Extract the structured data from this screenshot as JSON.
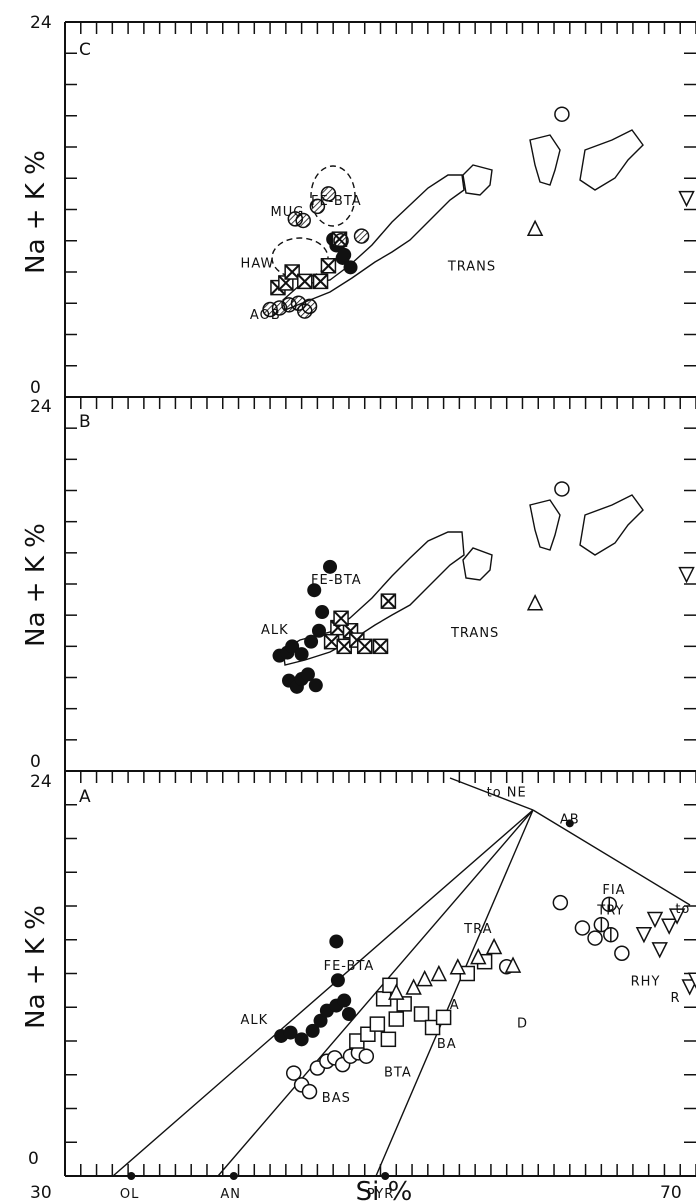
{
  "chart_data": {
    "type": "scatter",
    "x_axis": {
      "label": "Si %",
      "range": [
        30,
        70
      ],
      "tick_labels": [
        "30",
        "70"
      ]
    },
    "panels": [
      {
        "id": "C",
        "label": "C",
        "ylabel": "Na + K %",
        "y_range": [
          0,
          24
        ],
        "y_tick_labels": [
          "0",
          "24"
        ],
        "annotations": [
          {
            "text": "MUG",
            "x": 44.1,
            "y": 11.6
          },
          {
            "text": "FE-BTA",
            "x": 47.2,
            "y": 12.3
          },
          {
            "text": "HAW",
            "x": 42.2,
            "y": 8.3
          },
          {
            "text": "AOB",
            "x": 42.7,
            "y": 5.0
          },
          {
            "text": "TRANS",
            "x": 55.8,
            "y": 8.1
          }
        ],
        "groups": [
          {
            "name": "filled",
            "points": [
              [
                47.2,
                9.7
              ],
              [
                47.6,
                8.9
              ],
              [
                48.1,
                8.3
              ],
              [
                47.0,
                10.1
              ],
              [
                47.7,
                9.1
              ]
            ]
          },
          {
            "name": "square-cross",
            "points": [
              [
                43.5,
                7.0
              ],
              [
                44.0,
                7.3
              ],
              [
                44.4,
                8.0
              ],
              [
                45.2,
                7.4
              ],
              [
                46.2,
                7.4
              ],
              [
                46.7,
                8.4
              ],
              [
                47.4,
                10.1
              ]
            ]
          },
          {
            "name": "circle-hatched",
            "points": [
              [
                43.0,
                5.6
              ],
              [
                43.6,
                5.7
              ],
              [
                44.2,
                5.9
              ],
              [
                44.8,
                6.0
              ],
              [
                45.2,
                5.5
              ],
              [
                45.5,
                5.8
              ],
              [
                44.6,
                11.4
              ],
              [
                45.1,
                11.3
              ],
              [
                46.0,
                12.2
              ],
              [
                46.7,
                13.0
              ],
              [
                47.5,
                10.0
              ],
              [
                48.8,
                10.3
              ]
            ]
          },
          {
            "name": "triangle",
            "points": [
              [
                59.8,
                10.8
              ]
            ]
          },
          {
            "name": "circle",
            "points": [
              [
                61.5,
                18.1
              ]
            ]
          },
          {
            "name": "inverted-triangle",
            "points": [
              [
                69.4,
                12.7
              ]
            ]
          }
        ]
      },
      {
        "id": "B",
        "label": "B",
        "ylabel": "Na + K %",
        "y_range": [
          0,
          24
        ],
        "y_tick_labels": [
          "0",
          "24"
        ],
        "annotations": [
          {
            "text": "FE-BTA",
            "x": 47.2,
            "y": 12.0
          },
          {
            "text": "ALK",
            "x": 43.3,
            "y": 8.8
          },
          {
            "text": "TRANS",
            "x": 56.0,
            "y": 8.6
          }
        ],
        "groups": [
          {
            "name": "filled",
            "points": [
              [
                43.6,
                7.4
              ],
              [
                44.1,
                7.6
              ],
              [
                44.4,
                8.0
              ],
              [
                45.0,
                7.5
              ],
              [
                44.2,
                5.8
              ],
              [
                44.7,
                5.4
              ],
              [
                45.0,
                5.9
              ],
              [
                45.4,
                6.2
              ],
              [
                45.9,
                5.5
              ],
              [
                45.6,
                8.3
              ],
              [
                46.1,
                9.0
              ],
              [
                46.3,
                10.2
              ],
              [
                45.8,
                11.6
              ],
              [
                46.8,
                13.1
              ]
            ]
          },
          {
            "name": "square-cross",
            "points": [
              [
                46.9,
                8.3
              ],
              [
                47.3,
                9.2
              ],
              [
                47.7,
                8.0
              ],
              [
                48.1,
                9.0
              ],
              [
                48.5,
                8.4
              ],
              [
                49.0,
                8.0
              ],
              [
                50.0,
                8.0
              ],
              [
                50.5,
                10.9
              ],
              [
                47.5,
                9.8
              ]
            ]
          },
          {
            "name": "triangle",
            "points": [
              [
                59.8,
                10.8
              ]
            ]
          },
          {
            "name": "circle",
            "points": [
              [
                61.5,
                18.1
              ]
            ]
          },
          {
            "name": "inverted-triangle",
            "points": [
              [
                69.4,
                12.6
              ]
            ]
          }
        ]
      },
      {
        "id": "A",
        "label": "A",
        "ylabel": "Na + K %",
        "y_range": [
          0,
          24
        ],
        "y_tick_labels": [
          "0",
          "24"
        ],
        "annotations": [
          {
            "text": "to NE",
            "x": 58.0,
            "y": 22.5
          },
          {
            "text": "AB",
            "x": 62.0,
            "y": 20.9
          },
          {
            "text": "to QZ",
            "x": 70.0,
            "y": 15.6
          },
          {
            "text": "FIA",
            "x": 64.8,
            "y": 16.7
          },
          {
            "text": "TRY",
            "x": 64.6,
            "y": 15.5
          },
          {
            "text": "TRA",
            "x": 56.2,
            "y": 14.4
          },
          {
            "text": "RHY",
            "x": 66.8,
            "y": 11.3
          },
          {
            "text": "FE-BTA",
            "x": 48.0,
            "y": 12.2
          },
          {
            "text": "ALK",
            "x": 42.0,
            "y": 9.0
          },
          {
            "text": "A",
            "x": 54.7,
            "y": 9.9
          },
          {
            "text": "D",
            "x": 59.0,
            "y": 8.8
          },
          {
            "text": "BA",
            "x": 54.2,
            "y": 7.6
          },
          {
            "text": "BTA",
            "x": 51.1,
            "y": 5.9
          },
          {
            "text": "BAS",
            "x": 47.2,
            "y": 4.4
          },
          {
            "text": "R",
            "x": 68.7,
            "y": 10.3
          },
          {
            "text": "OL",
            "x": 34.1,
            "y": -1.3
          },
          {
            "text": "AN",
            "x": 40.5,
            "y": -1.3
          },
          {
            "text": "PYR",
            "x": 50.0,
            "y": -1.3
          }
        ],
        "reference_points": [
          {
            "name": "AB",
            "x": 62.0,
            "y": 20.9
          },
          {
            "name": "OL",
            "x": 34.2,
            "y": 0.0
          },
          {
            "name": "AN",
            "x": 40.7,
            "y": 0.0
          },
          {
            "name": "PYR",
            "x": 50.3,
            "y": 0.0
          }
        ],
        "groups": [
          {
            "name": "filled",
            "points": [
              [
                43.7,
                8.3
              ],
              [
                44.3,
                8.5
              ],
              [
                45.0,
                8.1
              ],
              [
                45.7,
                8.6
              ],
              [
                46.2,
                9.2
              ],
              [
                46.6,
                9.8
              ],
              [
                47.2,
                10.1
              ],
              [
                47.7,
                10.4
              ],
              [
                48.0,
                9.6
              ],
              [
                47.3,
                11.6
              ],
              [
                47.2,
                13.9
              ]
            ]
          },
          {
            "name": "circle",
            "points": [
              [
                44.5,
                6.1
              ],
              [
                45.0,
                5.4
              ],
              [
                45.5,
                5.0
              ],
              [
                46.0,
                6.4
              ],
              [
                46.6,
                6.8
              ],
              [
                47.1,
                7.0
              ],
              [
                47.6,
                6.6
              ],
              [
                48.1,
                7.1
              ],
              [
                48.6,
                7.3
              ],
              [
                49.1,
                7.1
              ],
              [
                58.0,
                12.4
              ],
              [
                61.4,
                16.2
              ],
              [
                62.8,
                14.7
              ],
              [
                63.6,
                14.1
              ],
              [
                65.3,
                13.2
              ]
            ]
          },
          {
            "name": "square",
            "points": [
              [
                48.5,
                8.0
              ],
              [
                49.2,
                8.4
              ],
              [
                49.8,
                9.0
              ],
              [
                50.5,
                8.1
              ],
              [
                51.0,
                9.3
              ],
              [
                50.2,
                10.5
              ],
              [
                50.6,
                11.3
              ],
              [
                51.5,
                10.2
              ],
              [
                52.6,
                9.6
              ],
              [
                53.3,
                8.8
              ],
              [
                54.0,
                9.4
              ],
              [
                55.5,
                12.0
              ],
              [
                56.6,
                12.7
              ]
            ]
          },
          {
            "name": "triangle",
            "points": [
              [
                51.0,
                10.9
              ],
              [
                52.1,
                11.2
              ],
              [
                52.8,
                11.7
              ],
              [
                53.7,
                12.0
              ],
              [
                54.9,
                12.4
              ],
              [
                56.2,
                13.0
              ],
              [
                57.2,
                13.6
              ],
              [
                58.4,
                12.5
              ]
            ]
          },
          {
            "name": "circle-barred",
            "points": [
              [
                64.5,
                16.1
              ],
              [
                64.0,
                14.9
              ],
              [
                64.6,
                14.3
              ]
            ]
          },
          {
            "name": "inverted-triangle",
            "points": [
              [
                66.7,
                14.3
              ],
              [
                67.4,
                15.2
              ],
              [
                68.3,
                14.8
              ],
              [
                68.8,
                15.4
              ],
              [
                67.7,
                13.4
              ],
              [
                69.6,
                11.2
              ],
              [
                70.0,
                11.6
              ]
            ]
          }
        ]
      }
    ]
  }
}
